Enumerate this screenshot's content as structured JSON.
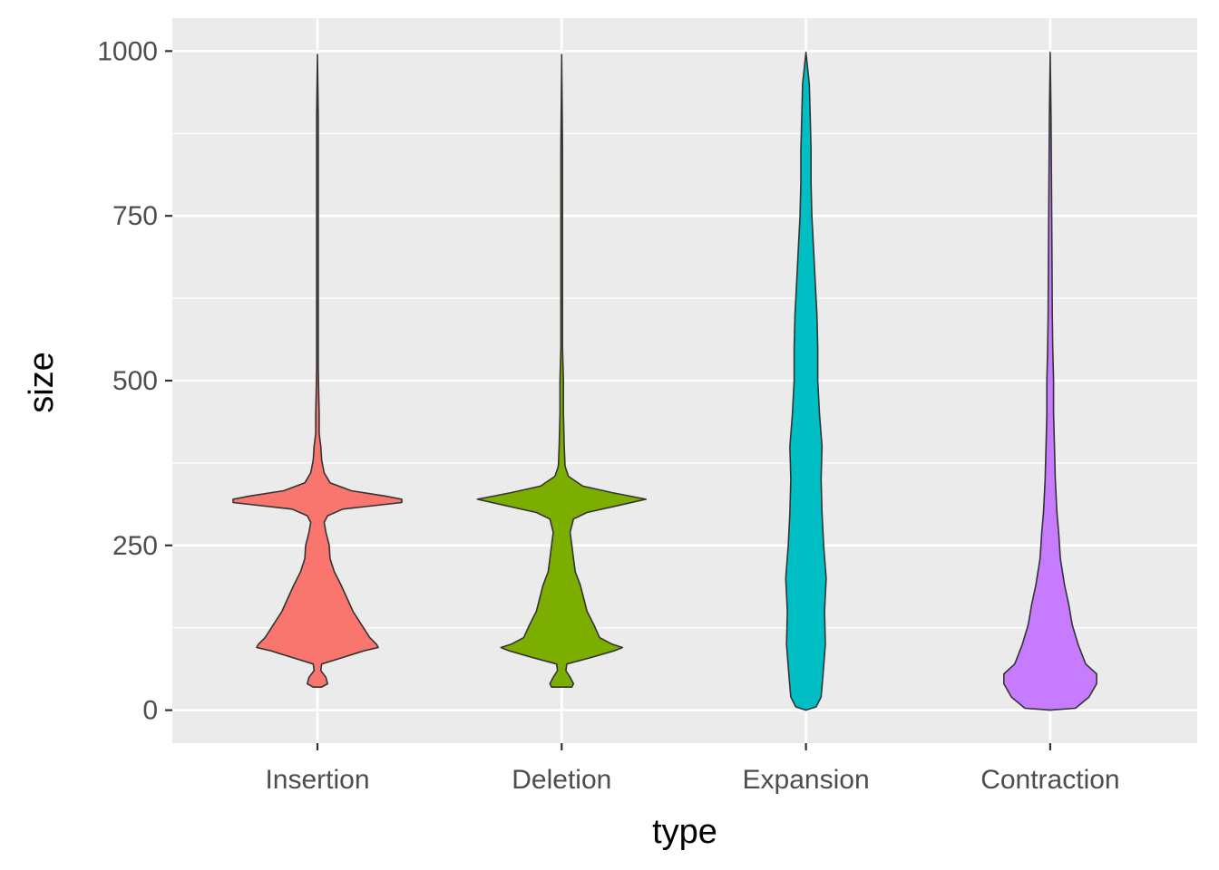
{
  "chart_data": {
    "type": "violin",
    "title": "",
    "xlabel": "type",
    "ylabel": "size",
    "ylim": [
      -50,
      1050
    ],
    "yticks": [
      0,
      250,
      500,
      750,
      1000
    ],
    "ytick_labels": [
      "0",
      "250",
      "500",
      "750",
      "1000"
    ],
    "grid": true,
    "legend": "none",
    "categories": [
      "Insertion",
      "Deletion",
      "Expansion",
      "Contraction"
    ],
    "series": [
      {
        "category": "Insertion",
        "color": "#F8766D",
        "profile": [
          [
            35,
            0.05
          ],
          [
            40,
            0.12
          ],
          [
            50,
            0.1
          ],
          [
            60,
            0.04
          ],
          [
            70,
            0.05
          ],
          [
            80,
            0.3
          ],
          [
            90,
            0.55
          ],
          [
            95,
            0.72
          ],
          [
            100,
            0.7
          ],
          [
            110,
            0.62
          ],
          [
            130,
            0.52
          ],
          [
            150,
            0.42
          ],
          [
            170,
            0.35
          ],
          [
            190,
            0.28
          ],
          [
            210,
            0.2
          ],
          [
            230,
            0.15
          ],
          [
            250,
            0.14
          ],
          [
            270,
            0.1
          ],
          [
            285,
            0.08
          ],
          [
            295,
            0.12
          ],
          [
            305,
            0.3
          ],
          [
            315,
            1.0
          ],
          [
            320,
            1.0
          ],
          [
            325,
            0.8
          ],
          [
            333,
            0.4
          ],
          [
            345,
            0.15
          ],
          [
            360,
            0.08
          ],
          [
            380,
            0.05
          ],
          [
            400,
            0.04
          ],
          [
            420,
            0.02
          ],
          [
            450,
            0.02
          ],
          [
            480,
            0.015
          ],
          [
            520,
            0.01
          ],
          [
            600,
            0.01
          ],
          [
            700,
            0.01
          ],
          [
            800,
            0.01
          ],
          [
            900,
            0.01
          ],
          [
            995,
            0.0
          ]
        ]
      },
      {
        "category": "Deletion",
        "color": "#7CAE00",
        "profile": [
          [
            35,
            0.12
          ],
          [
            40,
            0.14
          ],
          [
            50,
            0.1
          ],
          [
            60,
            0.05
          ],
          [
            70,
            0.06
          ],
          [
            80,
            0.35
          ],
          [
            90,
            0.62
          ],
          [
            95,
            0.72
          ],
          [
            100,
            0.6
          ],
          [
            110,
            0.45
          ],
          [
            130,
            0.38
          ],
          [
            150,
            0.3
          ],
          [
            170,
            0.26
          ],
          [
            190,
            0.22
          ],
          [
            210,
            0.16
          ],
          [
            230,
            0.14
          ],
          [
            250,
            0.12
          ],
          [
            270,
            0.1
          ],
          [
            290,
            0.14
          ],
          [
            300,
            0.3
          ],
          [
            310,
            0.65
          ],
          [
            320,
            1.0
          ],
          [
            330,
            0.6
          ],
          [
            340,
            0.25
          ],
          [
            355,
            0.08
          ],
          [
            370,
            0.04
          ],
          [
            400,
            0.03
          ],
          [
            450,
            0.02
          ],
          [
            500,
            0.02
          ],
          [
            550,
            0.01
          ],
          [
            700,
            0.01
          ],
          [
            850,
            0.01
          ],
          [
            995,
            0.0
          ]
        ]
      },
      {
        "category": "Expansion",
        "color": "#00BFC4",
        "profile": [
          [
            0,
            0.0
          ],
          [
            5,
            0.12
          ],
          [
            20,
            0.18
          ],
          [
            50,
            0.2
          ],
          [
            100,
            0.23
          ],
          [
            150,
            0.22
          ],
          [
            200,
            0.24
          ],
          [
            250,
            0.21
          ],
          [
            300,
            0.19
          ],
          [
            350,
            0.18
          ],
          [
            400,
            0.19
          ],
          [
            450,
            0.16
          ],
          [
            500,
            0.14
          ],
          [
            550,
            0.14
          ],
          [
            600,
            0.13
          ],
          [
            650,
            0.11
          ],
          [
            700,
            0.09
          ],
          [
            750,
            0.07
          ],
          [
            800,
            0.06
          ],
          [
            850,
            0.06
          ],
          [
            900,
            0.05
          ],
          [
            950,
            0.04
          ],
          [
            998,
            0.0
          ]
        ]
      },
      {
        "category": "Contraction",
        "color": "#C77CFF",
        "profile": [
          [
            0,
            0.0
          ],
          [
            3,
            0.3
          ],
          [
            20,
            0.46
          ],
          [
            40,
            0.55
          ],
          [
            55,
            0.55
          ],
          [
            70,
            0.42
          ],
          [
            100,
            0.33
          ],
          [
            130,
            0.26
          ],
          [
            160,
            0.22
          ],
          [
            190,
            0.17
          ],
          [
            230,
            0.12
          ],
          [
            270,
            0.1
          ],
          [
            300,
            0.08
          ],
          [
            350,
            0.06
          ],
          [
            400,
            0.05
          ],
          [
            450,
            0.04
          ],
          [
            500,
            0.04
          ],
          [
            550,
            0.03
          ],
          [
            600,
            0.025
          ],
          [
            700,
            0.02
          ],
          [
            800,
            0.015
          ],
          [
            900,
            0.01
          ],
          [
            998,
            0.0
          ]
        ]
      }
    ]
  }
}
